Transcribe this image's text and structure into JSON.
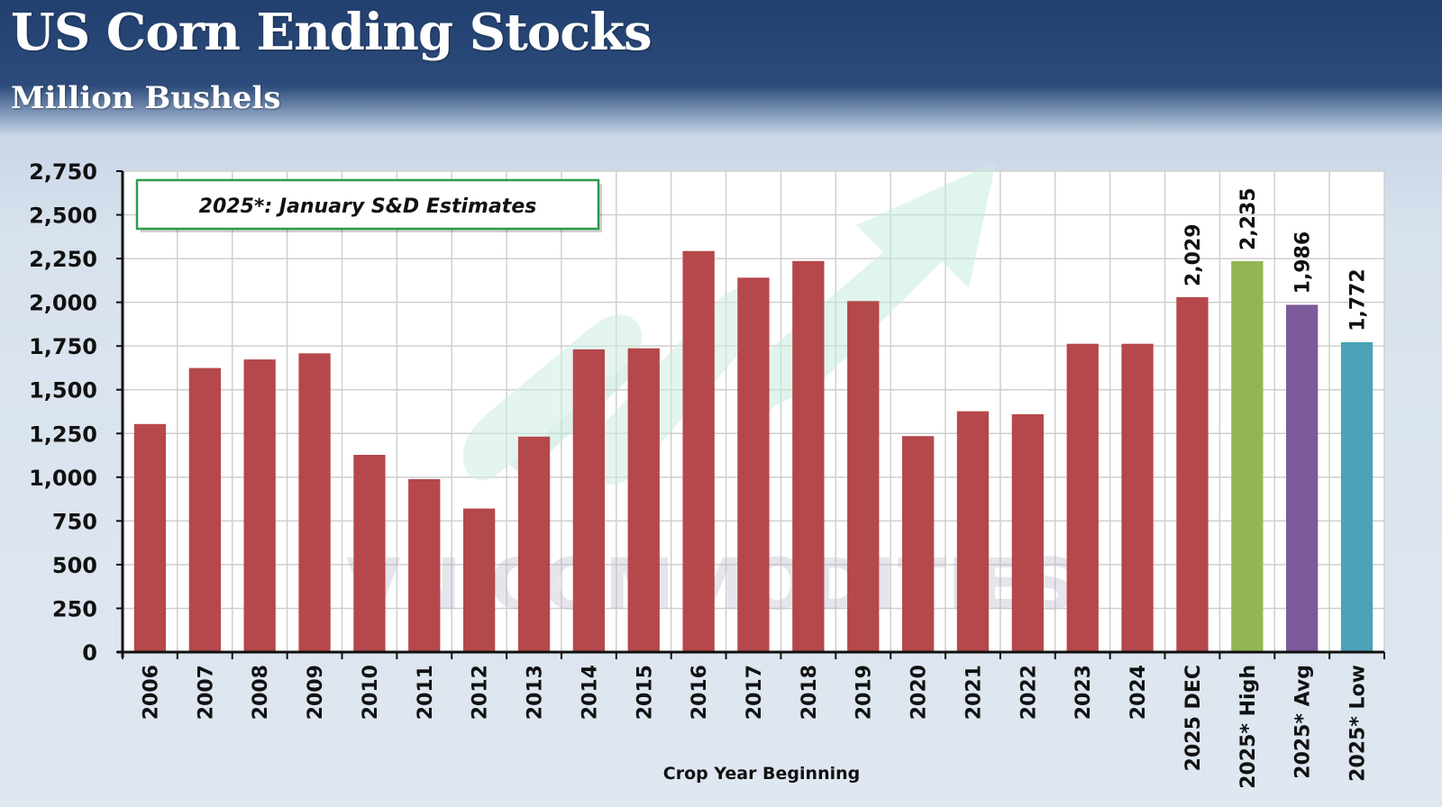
{
  "header": {
    "title": "US Corn Ending Stocks",
    "subtitle": "Million Bushels"
  },
  "watermark": {
    "text": "VN COMMODITIES",
    "logo_icon": "upward-arrow-logo-icon"
  },
  "colors": {
    "default_bar": "#b5484a",
    "high_bar": "#93b654",
    "avg_bar": "#7b5b9b",
    "low_bar": "#4aa3b8",
    "note_border": "#2e9a4a",
    "header": "#22406f"
  },
  "chart_data": {
    "type": "bar",
    "title": "US Corn Ending Stocks",
    "subtitle": "Million Bushels",
    "xlabel": "Crop Year Beginning",
    "ylabel": "",
    "ylim": [
      0,
      2750
    ],
    "yticks": [
      0,
      250,
      500,
      750,
      1000,
      1250,
      1500,
      1750,
      2000,
      2250,
      2500,
      2750
    ],
    "ytick_labels": [
      "0",
      "250",
      "500",
      "750",
      "1,000",
      "1,250",
      "1,500",
      "1,750",
      "2,000",
      "2,250",
      "2,500",
      "2,750"
    ],
    "grid": true,
    "annotation": "2025*: January S&D Estimates",
    "categories": [
      "2006",
      "2007",
      "2008",
      "2009",
      "2010",
      "2011",
      "2012",
      "2013",
      "2014",
      "2015",
      "2016",
      "2017",
      "2018",
      "2019",
      "2020",
      "2021",
      "2022",
      "2023",
      "2024",
      "2025 DEC",
      "2025* High",
      "2025* Avg",
      "2025* Low"
    ],
    "values": [
      1304,
      1624,
      1673,
      1708,
      1128,
      989,
      821,
      1232,
      1731,
      1737,
      2293,
      2141,
      2236,
      2007,
      1235,
      1377,
      1360,
      1763,
      1763,
      2029,
      2235,
      1986,
      1772
    ],
    "data_labels": [
      "",
      "",
      "",
      "",
      "",
      "",
      "",
      "",
      "",
      "",
      "",
      "",
      "",
      "",
      "",
      "",
      "",
      "",
      "",
      "2,029",
      "2,235",
      "1,986",
      "1,772"
    ],
    "bar_colors": [
      "#b5484a",
      "#b5484a",
      "#b5484a",
      "#b5484a",
      "#b5484a",
      "#b5484a",
      "#b5484a",
      "#b5484a",
      "#b5484a",
      "#b5484a",
      "#b5484a",
      "#b5484a",
      "#b5484a",
      "#b5484a",
      "#b5484a",
      "#b5484a",
      "#b5484a",
      "#b5484a",
      "#b5484a",
      "#b5484a",
      "#93b654",
      "#7b5b9b",
      "#4aa3b8"
    ]
  }
}
